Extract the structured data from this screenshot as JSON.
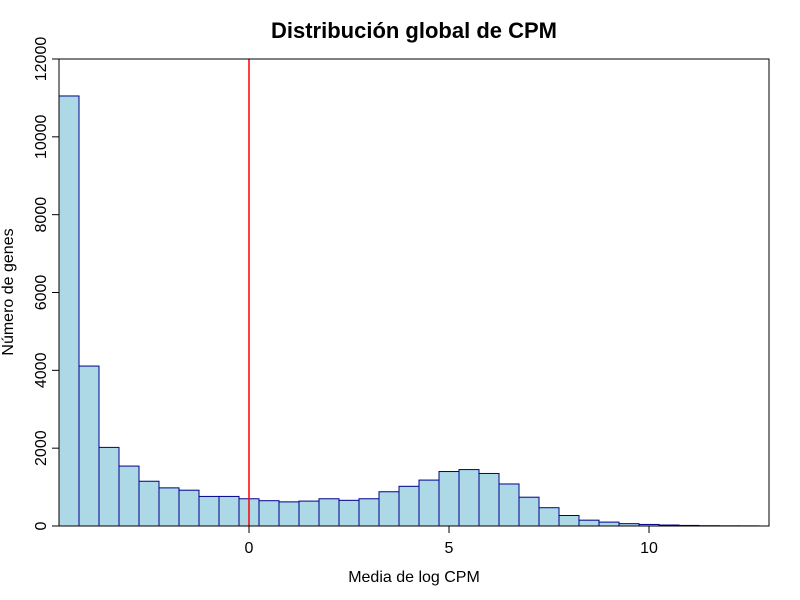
{
  "chart_data": {
    "type": "bar",
    "title": "Distribución global de CPM",
    "xlabel": "Media de log CPM",
    "ylabel": "Número de genes",
    "xlim": [
      -4.75,
      13
    ],
    "ylim": [
      0,
      12000
    ],
    "x_ticks": [
      0,
      5,
      10
    ],
    "x_tick_labels": [
      "0",
      "5",
      "10"
    ],
    "y_ticks": [
      0,
      2000,
      4000,
      6000,
      8000,
      10000,
      12000
    ],
    "y_tick_labels": [
      "0",
      "2000",
      "4000",
      "6000",
      "8000",
      "10000",
      "12000"
    ],
    "bin_start": -4.75,
    "bin_width": 0.5,
    "values": [
      11050,
      4110,
      2020,
      1540,
      1150,
      980,
      920,
      760,
      760,
      700,
      650,
      620,
      640,
      700,
      660,
      700,
      880,
      1020,
      1180,
      1400,
      1450,
      1350,
      1080,
      740,
      470,
      270,
      150,
      100,
      60,
      40,
      25,
      15,
      8,
      5,
      4
    ],
    "reference_line": {
      "x": 0,
      "color": "#ff0000"
    },
    "bar_fill": "#add8e6",
    "bar_stroke": "#00008b",
    "grid": false
  }
}
